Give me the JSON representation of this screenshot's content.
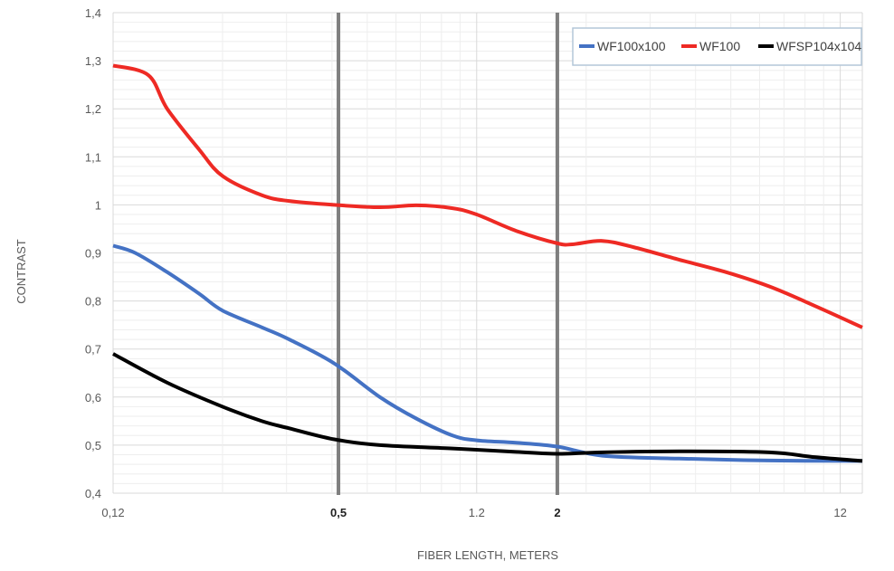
{
  "chart_data": {
    "type": "line",
    "xlabel": "FIBER LENGTH, METERS",
    "ylabel": "CONTRAST",
    "xscale": "log",
    "xlim": [
      0.12,
      13.8
    ],
    "ylim": [
      0.4,
      1.4
    ],
    "grid": true,
    "legend_position": "top-right",
    "x_tick_labels": [
      {
        "value": 0.12,
        "label": "0,12"
      },
      {
        "value": 0.5,
        "label": "0,5"
      },
      {
        "value": 1.2,
        "label": "1.2"
      },
      {
        "value": 2,
        "label": "2"
      },
      {
        "value": 12,
        "label": "12"
      }
    ],
    "y_tick_labels": [
      "0,4",
      "0,5",
      "0,6",
      "0,7",
      "0,8",
      "0,9",
      "1",
      "1,1",
      "1,2",
      "1,3",
      "1,4"
    ],
    "vertical_markers": [
      0.5,
      2
    ],
    "series": [
      {
        "name": "WF100x100",
        "color": "#4472c4",
        "x": [
          0.12,
          0.138,
          0.169,
          0.207,
          0.24,
          0.308,
          0.366,
          0.487,
          0.65,
          0.82,
          1.03,
          1.2,
          1.54,
          2.0,
          2.66,
          4.32,
          7.67,
          13.8
        ],
        "y": [
          0.915,
          0.9,
          0.86,
          0.815,
          0.78,
          0.745,
          0.72,
          0.67,
          0.6,
          0.555,
          0.52,
          0.51,
          0.505,
          0.497,
          0.478,
          0.472,
          0.468,
          0.467
        ]
      },
      {
        "name": "WF100",
        "color": "#ee2a24",
        "x": [
          0.12,
          0.15,
          0.169,
          0.207,
          0.24,
          0.308,
          0.366,
          0.487,
          0.65,
          0.82,
          1.03,
          1.2,
          1.54,
          2.0,
          2.2,
          2.66,
          3.24,
          4.32,
          5.76,
          7.67,
          10.2,
          13.8
        ],
        "y": [
          1.29,
          1.27,
          1.2,
          1.115,
          1.06,
          1.02,
          1.008,
          1.0,
          0.995,
          0.999,
          0.993,
          0.98,
          0.946,
          0.92,
          0.918,
          0.925,
          0.912,
          0.886,
          0.861,
          0.83,
          0.79,
          0.745
        ]
      },
      {
        "name": "WFSP104x104",
        "color": "#000000",
        "x": [
          0.12,
          0.169,
          0.24,
          0.308,
          0.366,
          0.487,
          0.65,
          1.03,
          1.54,
          2.0,
          2.66,
          4.32,
          7.67,
          10.2,
          13.8
        ],
        "y": [
          0.69,
          0.63,
          0.58,
          0.55,
          0.535,
          0.512,
          0.5,
          0.493,
          0.486,
          0.482,
          0.485,
          0.487,
          0.485,
          0.475,
          0.467
        ]
      }
    ]
  }
}
